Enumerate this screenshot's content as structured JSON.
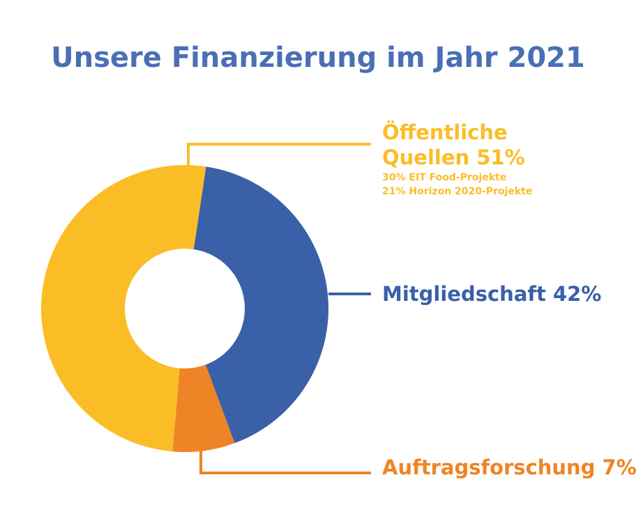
{
  "colors": {
    "title": "#4a6fb5",
    "background": "#ffffff"
  },
  "chart_data": {
    "type": "pie",
    "variant": "donut",
    "title": "Unsere Finanzierung im Jahr 2021",
    "slices": [
      {
        "label_lines": [
          "Öffentliche",
          "Quellen 51%"
        ],
        "value": 51,
        "color": "#fbbd26",
        "details": [
          "30% EIT Food-Projekte",
          "21% Horizon 2020-Projekte"
        ]
      },
      {
        "label_lines": [
          "Mitgliedschaft 42%"
        ],
        "value": 42,
        "color": "#3a60a8",
        "details": []
      },
      {
        "label_lines": [
          "Auftragsforschung 7%"
        ],
        "value": 7,
        "color": "#ef8426",
        "details": []
      }
    ]
  }
}
